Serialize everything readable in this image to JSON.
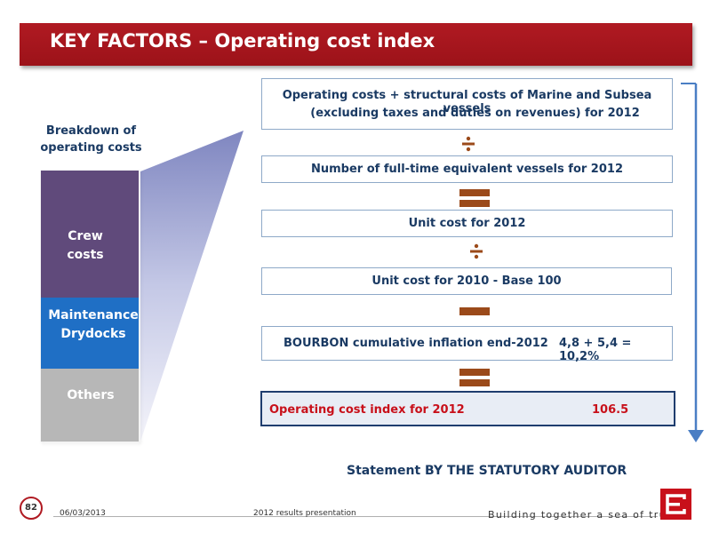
{
  "header": {
    "title": "KEY FACTORS – Operating cost index"
  },
  "breakdown": {
    "title_line1": "Breakdown of",
    "title_line2": "operating costs",
    "segments": [
      {
        "line1": "Crew",
        "line2": "costs",
        "color": "#604a7b"
      },
      {
        "line1": "Maintenance",
        "line2": "Drydocks",
        "color": "#1f6fc5"
      },
      {
        "line1": "Others",
        "line2": "",
        "color": "#b7b7b7"
      }
    ]
  },
  "formula": {
    "step1_line1": "Operating costs + structural costs of Marine and Subsea vessels",
    "step1_line2": "(excluding taxes and duties on revenues) for 2012",
    "op1": "divide",
    "step2": "Number of full-time equivalent vessels for 2012",
    "op2": "equals",
    "step3": "Unit cost for 2012",
    "op3": "divide",
    "step4": "Unit cost for 2010 - Base 100",
    "op4": "minus",
    "step5_label": "BOURBON cumulative inflation end-2012",
    "step5_value": "4,8 + 5,4 = 10,2%",
    "op5": "equals",
    "result_label": "Operating cost index for 2012",
    "result_value": "106.5"
  },
  "statement": "Statement BY THE STATUTORY AUDITOR",
  "footer": {
    "page_number": "82",
    "date": "06/03/2013",
    "presentation": "2012 results presentation",
    "slogan": "Building together a sea of trust"
  },
  "colors": {
    "brand_red": "#b01a22",
    "operator_brown": "#9b4a1a",
    "arrow_blue": "#4a7ec4"
  }
}
